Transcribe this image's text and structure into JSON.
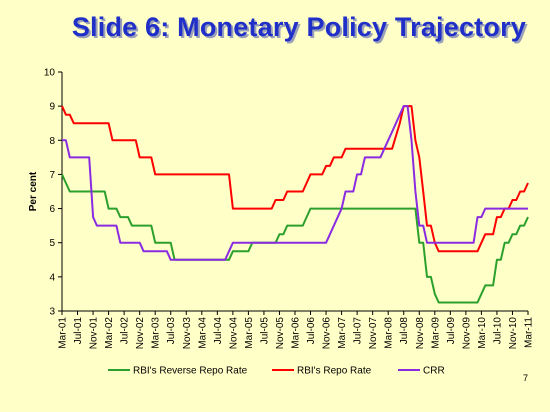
{
  "slide": {
    "title": "Slide 6: Monetary Policy Trajectory",
    "page_number": "7"
  },
  "chart_data": {
    "type": "line",
    "title": "",
    "ylabel": "Per cent",
    "xlabel": "",
    "ylim": [
      3,
      10
    ],
    "yticks": [
      3,
      4,
      5,
      6,
      7,
      8,
      9,
      10
    ],
    "grid": false,
    "legend": "bottom",
    "x_tick_labels": [
      "Mar-01",
      "Jul-01",
      "Nov-01",
      "Mar-02",
      "Jul-02",
      "Nov-02",
      "Mar-03",
      "Jul-03",
      "Nov-03",
      "Mar-04",
      "Jul-04",
      "Nov-04",
      "Mar-05",
      "Jul-05",
      "Nov-05",
      "Mar-06",
      "Jul-06",
      "Nov-06",
      "Mar-07",
      "Jul-07",
      "Nov-07",
      "Mar-08",
      "Jul-08",
      "Nov-08",
      "Mar-09",
      "Jul-09",
      "Nov-09",
      "Mar-10",
      "Jul-10",
      "Nov-10",
      "Mar-11"
    ],
    "series": [
      {
        "name": "RBI's Reverse Repo Rate",
        "color": "#2ca02c",
        "points": [
          [
            "Mar-01",
            7.0
          ],
          [
            "Apr-01",
            6.75
          ],
          [
            "May-01",
            6.5
          ],
          [
            "Dec-01",
            6.5
          ],
          [
            "Feb-02",
            6.5
          ],
          [
            "Mar-02",
            6.0
          ],
          [
            "May-02",
            6.0
          ],
          [
            "Jun-02",
            5.75
          ],
          [
            "Aug-02",
            5.75
          ],
          [
            "Sep-02",
            5.5
          ],
          [
            "Dec-02",
            5.5
          ],
          [
            "Feb-03",
            5.5
          ],
          [
            "Mar-03",
            5.0
          ],
          [
            "Jul-03",
            5.0
          ],
          [
            "Aug-03",
            4.5
          ],
          [
            "Oct-04",
            4.5
          ],
          [
            "Nov-04",
            4.75
          ],
          [
            "Mar-05",
            4.75
          ],
          [
            "Apr-05",
            5.0
          ],
          [
            "Oct-05",
            5.0
          ],
          [
            "Nov-05",
            5.25
          ],
          [
            "Dec-05",
            5.25
          ],
          [
            "Jan-06",
            5.5
          ],
          [
            "May-06",
            5.5
          ],
          [
            "Jun-06",
            5.75
          ],
          [
            "Jul-06",
            6.0
          ],
          [
            "Oct-08",
            6.0
          ],
          [
            "Nov-08",
            5.0
          ],
          [
            "Dec-08",
            5.0
          ],
          [
            "Jan-09",
            4.0
          ],
          [
            "Feb-09",
            4.0
          ],
          [
            "Mar-09",
            3.5
          ],
          [
            "Apr-09",
            3.25
          ],
          [
            "Feb-10",
            3.25
          ],
          [
            "Mar-10",
            3.5
          ],
          [
            "Apr-10",
            3.75
          ],
          [
            "Jun-10",
            3.75
          ],
          [
            "Jul-10",
            4.5
          ],
          [
            "Aug-10",
            4.5
          ],
          [
            "Sep-10",
            5.0
          ],
          [
            "Oct-10",
            5.0
          ],
          [
            "Nov-10",
            5.25
          ],
          [
            "Dec-10",
            5.25
          ],
          [
            "Jan-11",
            5.5
          ],
          [
            "Feb-11",
            5.5
          ],
          [
            "Mar-11",
            5.75
          ]
        ]
      },
      {
        "name": "RBI's Repo Rate",
        "color": "#ff0000",
        "points": [
          [
            "Mar-01",
            9.0
          ],
          [
            "Apr-01",
            8.75
          ],
          [
            "May-01",
            8.75
          ],
          [
            "Jun-01",
            8.5
          ],
          [
            "Mar-02",
            8.5
          ],
          [
            "Apr-02",
            8.0
          ],
          [
            "Oct-02",
            8.0
          ],
          [
            "Nov-02",
            7.5
          ],
          [
            "Feb-03",
            7.5
          ],
          [
            "Mar-03",
            7.0
          ],
          [
            "Oct-04",
            7.0
          ],
          [
            "Nov-04",
            6.0
          ],
          [
            "Sep-05",
            6.0
          ],
          [
            "Oct-05",
            6.25
          ],
          [
            "Dec-05",
            6.25
          ],
          [
            "Jan-06",
            6.5
          ],
          [
            "May-06",
            6.5
          ],
          [
            "Jun-06",
            6.75
          ],
          [
            "Jul-06",
            7.0
          ],
          [
            "Oct-06",
            7.0
          ],
          [
            "Nov-06",
            7.25
          ],
          [
            "Dec-06",
            7.25
          ],
          [
            "Jan-07",
            7.5
          ],
          [
            "Mar-07",
            7.5
          ],
          [
            "Apr-07",
            7.75
          ],
          [
            "Apr-08",
            7.75
          ],
          [
            "Jun-08",
            8.5
          ],
          [
            "Jul-08",
            9.0
          ],
          [
            "Sep-08",
            9.0
          ],
          [
            "Oct-08",
            8.0
          ],
          [
            "Nov-08",
            7.5
          ],
          [
            "Dec-08",
            6.5
          ],
          [
            "Jan-09",
            5.5
          ],
          [
            "Feb-09",
            5.5
          ],
          [
            "Mar-09",
            5.0
          ],
          [
            "Apr-09",
            4.75
          ],
          [
            "Feb-10",
            4.75
          ],
          [
            "Mar-10",
            5.0
          ],
          [
            "Apr-10",
            5.25
          ],
          [
            "Jun-10",
            5.25
          ],
          [
            "Jul-10",
            5.75
          ],
          [
            "Aug-10",
            5.75
          ],
          [
            "Sep-10",
            6.0
          ],
          [
            "Oct-10",
            6.0
          ],
          [
            "Nov-10",
            6.25
          ],
          [
            "Dec-10",
            6.25
          ],
          [
            "Jan-11",
            6.5
          ],
          [
            "Feb-11",
            6.5
          ],
          [
            "Mar-11",
            6.75
          ]
        ]
      },
      {
        "name": "CRR",
        "color": "#8a2be2",
        "points": [
          [
            "Mar-01",
            8.0
          ],
          [
            "Apr-01",
            8.0
          ],
          [
            "May-01",
            7.5
          ],
          [
            "Oct-01",
            7.5
          ],
          [
            "Nov-01",
            5.75
          ],
          [
            "Dec-01",
            5.5
          ],
          [
            "May-02",
            5.5
          ],
          [
            "Jun-02",
            5.0
          ],
          [
            "Nov-02",
            5.0
          ],
          [
            "Dec-02",
            4.75
          ],
          [
            "Jun-03",
            4.75
          ],
          [
            "Jul-03",
            4.5
          ],
          [
            "Sep-04",
            4.5
          ],
          [
            "Oct-04",
            4.75
          ],
          [
            "Nov-04",
            5.0
          ],
          [
            "Nov-06",
            5.0
          ],
          [
            "Mar-07",
            6.0
          ],
          [
            "Apr-07",
            6.5
          ],
          [
            "Jun-07",
            6.5
          ],
          [
            "Jul-07",
            7.0
          ],
          [
            "Aug-07",
            7.0
          ],
          [
            "Sep-07",
            7.5
          ],
          [
            "Jan-08",
            7.5
          ],
          [
            "Feb-08",
            7.75
          ],
          [
            "Apr-08",
            8.25
          ],
          [
            "Jun-08",
            8.75
          ],
          [
            "Jul-08",
            9.0
          ],
          [
            "Aug-08",
            9.0
          ],
          [
            "Sep-08",
            8.0
          ],
          [
            "Oct-08",
            6.5
          ],
          [
            "Nov-08",
            5.5
          ],
          [
            "Dec-08",
            5.5
          ],
          [
            "Jan-09",
            5.0
          ],
          [
            "Jan-10",
            5.0
          ],
          [
            "Feb-10",
            5.75
          ],
          [
            "Mar-10",
            5.75
          ],
          [
            "Apr-10",
            6.0
          ],
          [
            "Mar-11",
            6.0
          ]
        ]
      }
    ]
  }
}
